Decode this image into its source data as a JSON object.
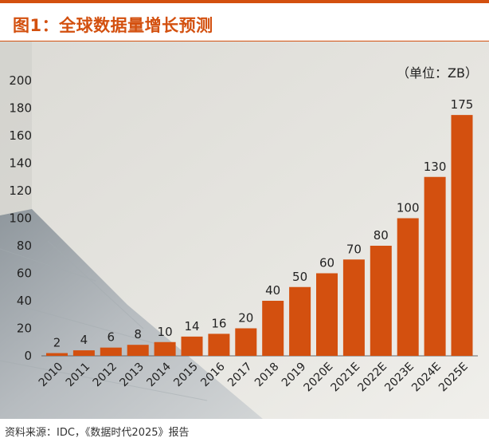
{
  "header": {
    "title": "图1：全球数据量增长预测"
  },
  "chart_data": {
    "type": "bar",
    "title": "图1：全球数据量增长预测",
    "unit_label": "（单位：ZB）",
    "categories": [
      "2010",
      "2011",
      "2012",
      "2013",
      "2014",
      "2015",
      "2016",
      "2017",
      "2018",
      "2019",
      "2020E",
      "2021E",
      "2022E",
      "2023E",
      "2024E",
      "2025E"
    ],
    "values": [
      2,
      4,
      6,
      8,
      10,
      14,
      16,
      20,
      40,
      50,
      60,
      70,
      80,
      100,
      130,
      175
    ],
    "ylim": [
      0,
      200
    ],
    "yticks": [
      0,
      20,
      40,
      60,
      80,
      100,
      120,
      140,
      160,
      180,
      200
    ],
    "grid": false,
    "data_labels": true,
    "bar_color": "#d3500f"
  },
  "footer": {
    "source": "资料来源：IDC，《数据时代2025》报告"
  }
}
